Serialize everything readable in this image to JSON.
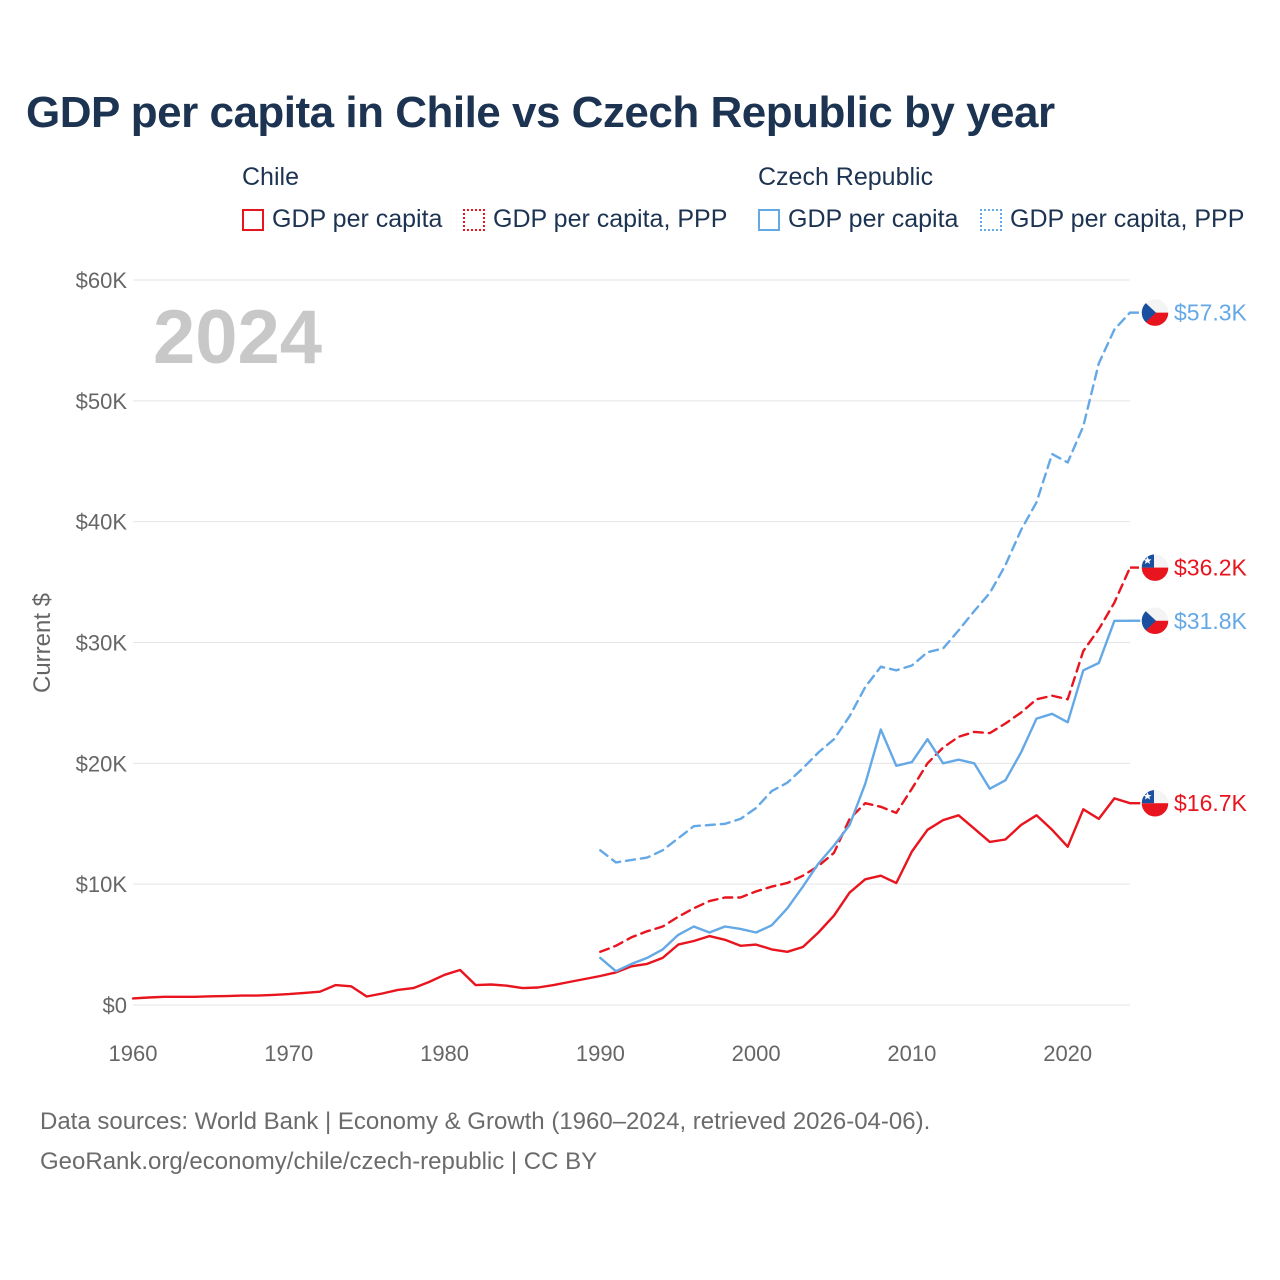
{
  "chart_data": {
    "type": "line",
    "title": "GDP per capita in Chile vs Czech Republic by year",
    "year_label": "2024",
    "ylabel": "Current $",
    "xlabel": "",
    "xlim": [
      1960,
      2024
    ],
    "ylim": [
      0,
      60000
    ],
    "x_ticks": [
      1960,
      1970,
      1980,
      1990,
      2000,
      2010,
      2020
    ],
    "x_tick_labels": [
      "1960",
      "1970",
      "1980",
      "1990",
      "2000",
      "2010",
      "2020"
    ],
    "y_ticks": [
      0,
      10000,
      20000,
      30000,
      40000,
      50000,
      60000
    ],
    "y_tick_labels": [
      "$0",
      "$10K",
      "$20K",
      "$30K",
      "$40K",
      "$50K",
      "$60K"
    ],
    "grid": true,
    "legend_position": "top",
    "legend_groups": [
      {
        "name": "Chile",
        "items": [
          "GDP per capita",
          "GDP per capita, PPP"
        ]
      },
      {
        "name": "Czech Republic",
        "items": [
          "GDP per capita",
          "GDP per capita, PPP"
        ]
      }
    ],
    "series": [
      {
        "name": "Chile GDP per capita",
        "country": "Chile",
        "metric": "GDP per capita",
        "color": "#e8141e",
        "dash": "solid",
        "end_label": "$16.7K",
        "x": [
          1960,
          1961,
          1962,
          1963,
          1964,
          1965,
          1966,
          1967,
          1968,
          1969,
          1970,
          1971,
          1972,
          1973,
          1974,
          1975,
          1976,
          1977,
          1978,
          1979,
          1980,
          1981,
          1982,
          1983,
          1984,
          1985,
          1986,
          1987,
          1988,
          1989,
          1990,
          1991,
          1992,
          1993,
          1994,
          1995,
          1996,
          1997,
          1998,
          1999,
          2000,
          2001,
          2002,
          2003,
          2004,
          2005,
          2006,
          2007,
          2008,
          2009,
          2010,
          2011,
          2012,
          2013,
          2014,
          2015,
          2016,
          2017,
          2018,
          2019,
          2020,
          2021,
          2022,
          2023,
          2024
        ],
        "values": [
          550,
          620,
          680,
          680,
          680,
          720,
          740,
          780,
          780,
          840,
          900,
          1000,
          1100,
          1650,
          1550,
          700,
          950,
          1250,
          1400,
          1900,
          2500,
          2900,
          1650,
          1700,
          1600,
          1400,
          1450,
          1650,
          1900,
          2150,
          2400,
          2700,
          3200,
          3400,
          3900,
          5000,
          5300,
          5700,
          5400,
          4900,
          5000,
          4600,
          4400,
          4800,
          6000,
          7400,
          9300,
          10400,
          10700,
          10100,
          12700,
          14500,
          15300,
          15700,
          14600,
          13500,
          13700,
          14900,
          15700,
          14500,
          13100,
          16200,
          15400,
          17100,
          16700
        ]
      },
      {
        "name": "Chile GDP per capita, PPP",
        "country": "Chile",
        "metric": "GDP per capita, PPP",
        "color": "#e8141e",
        "dash": "dashed",
        "end_label": "$36.2K",
        "x": [
          1990,
          1991,
          1992,
          1993,
          1994,
          1995,
          1996,
          1997,
          1998,
          1999,
          2000,
          2001,
          2002,
          2003,
          2004,
          2005,
          2006,
          2007,
          2008,
          2009,
          2010,
          2011,
          2012,
          2013,
          2014,
          2015,
          2016,
          2017,
          2018,
          2019,
          2020,
          2021,
          2022,
          2023,
          2024
        ],
        "values": [
          4400,
          4900,
          5600,
          6100,
          6500,
          7300,
          8000,
          8600,
          8900,
          8900,
          9400,
          9800,
          10100,
          10700,
          11500,
          12600,
          15400,
          16700,
          16400,
          15900,
          17900,
          20000,
          21300,
          22200,
          22600,
          22500,
          23300,
          24200,
          25300,
          25600,
          25300,
          29300,
          31100,
          33300,
          36200
        ]
      },
      {
        "name": "Czech Republic GDP per capita",
        "country": "Czech Republic",
        "metric": "GDP per capita",
        "color": "#64a8e6",
        "dash": "solid",
        "end_label": "$31.8K",
        "x": [
          1990,
          1991,
          1992,
          1993,
          1994,
          1995,
          1996,
          1997,
          1998,
          1999,
          2000,
          2001,
          2002,
          2003,
          2004,
          2005,
          2006,
          2007,
          2008,
          2009,
          2010,
          2011,
          2012,
          2013,
          2014,
          2015,
          2016,
          2017,
          2018,
          2019,
          2020,
          2021,
          2022,
          2023,
          2024
        ],
        "values": [
          3900,
          2800,
          3400,
          3900,
          4600,
          5800,
          6500,
          6000,
          6500,
          6300,
          6000,
          6600,
          8000,
          9800,
          11700,
          13200,
          14900,
          18300,
          22800,
          19800,
          20100,
          22000,
          20000,
          20300,
          20000,
          17900,
          18600,
          20900,
          23700,
          24100,
          23400,
          27700,
          28300,
          31800,
          31800
        ]
      },
      {
        "name": "Czech Republic GDP per capita, PPP",
        "country": "Czech Republic",
        "metric": "GDP per capita, PPP",
        "color": "#64a8e6",
        "dash": "dashed",
        "end_label": "$57.3K",
        "x": [
          1990,
          1991,
          1992,
          1993,
          1994,
          1995,
          1996,
          1997,
          1998,
          1999,
          2000,
          2001,
          2002,
          2003,
          2004,
          2005,
          2006,
          2007,
          2008,
          2009,
          2010,
          2011,
          2012,
          2013,
          2014,
          2015,
          2016,
          2017,
          2018,
          2019,
          2020,
          2021,
          2022,
          2023,
          2024
        ],
        "values": [
          12800,
          11800,
          12000,
          12200,
          12800,
          13800,
          14800,
          14900,
          15000,
          15400,
          16300,
          17700,
          18400,
          19600,
          20900,
          22000,
          23900,
          26300,
          28000,
          27700,
          28100,
          29200,
          29500,
          31000,
          32600,
          34100,
          36400,
          39300,
          41600,
          45600,
          44900,
          47900,
          53100,
          55900,
          57300
        ]
      }
    ]
  },
  "sources": {
    "line1": "Data sources: World Bank | Economy & Growth (1960–2024, retrieved 2026-04-06).",
    "line2": "GeoRank.org/economy/chile/czech-republic | CC BY"
  },
  "flags": {
    "chile": "chile-flag-icon",
    "czech": "czech-flag-icon"
  },
  "colors": {
    "chile": "#e8141e",
    "czech": "#64a8e6",
    "title": "#1c3352",
    "axis_text": "#666666",
    "grid": "#e5e5e5"
  }
}
